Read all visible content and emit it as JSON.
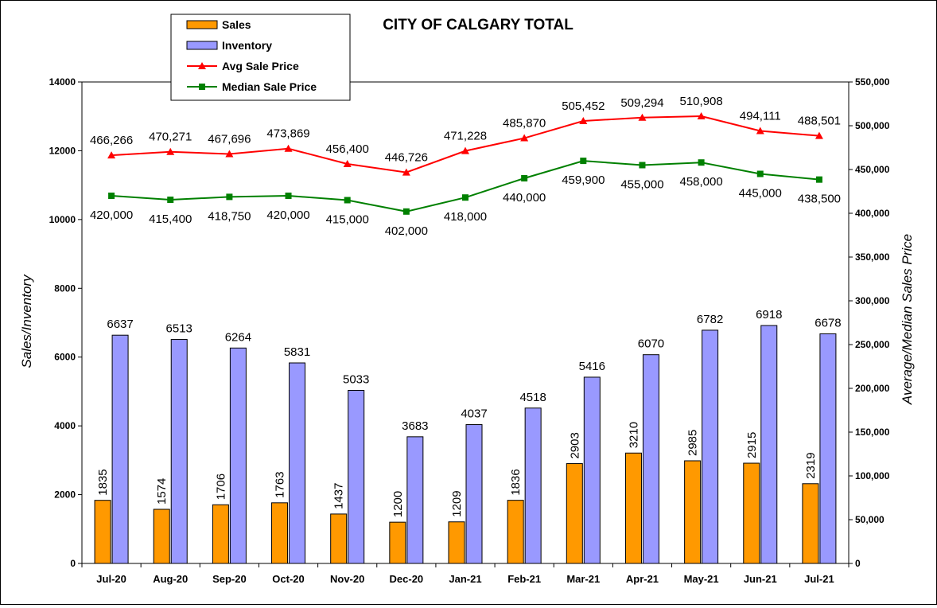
{
  "chart_data": {
    "type": "bar",
    "title": "CITY OF CALGARY TOTAL",
    "ylabel": "Sales/Inventory",
    "y2label": "Average/Median Sales Price",
    "ylim": [
      0,
      14000
    ],
    "y2lim": [
      0,
      550000
    ],
    "yticks": [
      "0",
      "2000",
      "4000",
      "6000",
      "8000",
      "10000",
      "12000",
      "14000"
    ],
    "y2ticks": [
      "0",
      "50,000",
      "100,000",
      "150,000",
      "200,000",
      "250,000",
      "300,000",
      "350,000",
      "400,000",
      "450,000",
      "500,000",
      "550,000"
    ],
    "categories": [
      "Jul-20",
      "Aug-20",
      "Sep-20",
      "Oct-20",
      "Nov-20",
      "Dec-20",
      "Jan-21",
      "Feb-21",
      "Mar-21",
      "Apr-21",
      "May-21",
      "Jun-21",
      "Jul-21"
    ],
    "series": [
      {
        "name": "Sales",
        "kind": "bar",
        "axis": "left",
        "color": "#FF9900",
        "values": [
          1835,
          1574,
          1706,
          1763,
          1437,
          1200,
          1209,
          1836,
          2903,
          3210,
          2985,
          2915,
          2319
        ],
        "labels": [
          "1835",
          "1574",
          "1706",
          "1763",
          "1437",
          "1200",
          "1209",
          "1836",
          "2903",
          "3210",
          "2985",
          "2915",
          "2319"
        ]
      },
      {
        "name": "Inventory",
        "kind": "bar",
        "axis": "left",
        "color": "#9999FF",
        "values": [
          6637,
          6513,
          6264,
          5831,
          5033,
          3683,
          4037,
          4518,
          5416,
          6070,
          6782,
          6918,
          6678
        ],
        "labels": [
          "6637",
          "6513",
          "6264",
          "5831",
          "5033",
          "3683",
          "4037",
          "4518",
          "5416",
          "6070",
          "6782",
          "6918",
          "6678"
        ]
      },
      {
        "name": "Avg Sale Price",
        "kind": "line",
        "axis": "right",
        "color": "#FF0000",
        "marker": "triangle",
        "values": [
          466266,
          470271,
          467696,
          473869,
          456400,
          446726,
          471228,
          485870,
          505452,
          509294,
          510908,
          494111,
          488501
        ],
        "labels": [
          "466,266",
          "470,271",
          "467,696",
          "473,869",
          "456,400",
          "446,726",
          "471,228",
          "485,870",
          "505,452",
          "509,294",
          "510,908",
          "494,111",
          "488,501"
        ]
      },
      {
        "name": "Median Sale Price",
        "kind": "line",
        "axis": "right",
        "color": "#008000",
        "marker": "square",
        "values": [
          420000,
          415400,
          418750,
          420000,
          415000,
          402000,
          418000,
          440000,
          459900,
          455000,
          458000,
          445000,
          438500
        ],
        "labels": [
          "420,000",
          "415,400",
          "418,750",
          "420,000",
          "415,000",
          "402,000",
          "418,000",
          "440,000",
          "459,900",
          "455,000",
          "458,000",
          "445,000",
          "438,500"
        ]
      }
    ],
    "legend": {
      "position": "top-left"
    },
    "grid": false
  }
}
